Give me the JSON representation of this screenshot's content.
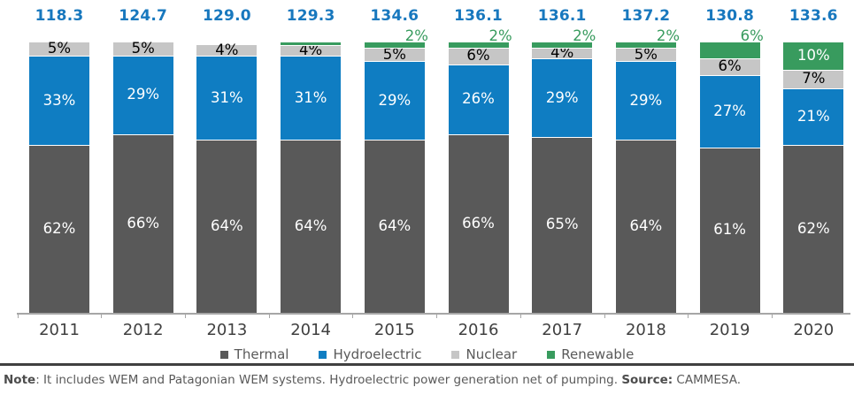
{
  "chart_data": {
    "type": "bar",
    "subtype": "stacked-percentage-columns",
    "title": "",
    "categories": [
      "2011",
      "2012",
      "2013",
      "2014",
      "2015",
      "2016",
      "2017",
      "2018",
      "2019",
      "2020"
    ],
    "totals": [
      "118.3",
      "124.7",
      "129.0",
      "129.3",
      "134.6",
      "136.1",
      "136.1",
      "137.2",
      "130.8",
      "133.6"
    ],
    "totals_color": "#1878BE",
    "unit": "%",
    "value_axis_range": [
      0,
      100
    ],
    "grid": false,
    "legend_position": "bottom",
    "axis_line_color": "#A6A6A6",
    "series": [
      {
        "name": "Thermal",
        "color": "#595959",
        "label_color": "#ffffff",
        "values": [
          62,
          66,
          64,
          64,
          64,
          66,
          65,
          64,
          61,
          62
        ]
      },
      {
        "name": "Hydroelectric",
        "color": "#0F7DC2",
        "label_color": "#ffffff",
        "values": [
          33,
          29,
          31,
          31,
          29,
          26,
          29,
          29,
          27,
          21
        ]
      },
      {
        "name": "Nuclear",
        "color": "#C6C6C6",
        "label_color": "#000000",
        "values": [
          5,
          5,
          4,
          4,
          5,
          6,
          4,
          5,
          6,
          7
        ]
      },
      {
        "name": "Renewable",
        "color": "#389B5E",
        "label_color": "#ffffff",
        "values": [
          0,
          0,
          0,
          1,
          2,
          2,
          2,
          2,
          6,
          10
        ],
        "label_modes": [
          "none",
          "none",
          "none",
          "none",
          "outside",
          "outside",
          "outside",
          "outside",
          "outside",
          "inside"
        ],
        "outside_label_color": "#389B5E"
      }
    ]
  },
  "footer": {
    "note_label": "Note",
    "note_text": ": It includes WEM and Patagonian WEM systems. Hydroelectric power generation net of pumping. ",
    "source_label": "Source:",
    "source_text": " CAMMESA."
  }
}
